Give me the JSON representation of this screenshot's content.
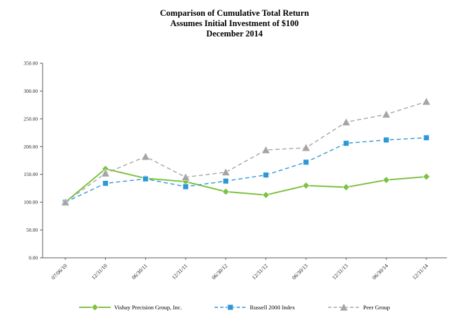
{
  "title": {
    "line1": "Comparison of Cumulative Total Return",
    "line2": "Assumes Initial Investment of $100",
    "line3": "December 2014"
  },
  "chart_data": {
    "type": "line",
    "title": "Comparison of Cumulative Total Return Assumes Initial Investment of $100 December 2014",
    "categories": [
      "07/06/10",
      "12/31/10",
      "06/30/11",
      "12/31/11",
      "06/30/12",
      "12/31/12",
      "06/30/13",
      "12/31/13",
      "06/30/14",
      "12/31/14"
    ],
    "series": [
      {
        "name": "Vishay Precision Group, Inc.",
        "values": [
          100,
          160,
          143,
          137,
          119,
          113,
          130,
          127,
          140,
          146
        ],
        "color": "#7dc242",
        "line_style": "solid",
        "marker": "diamond"
      },
      {
        "name": "Russell 2000 Index",
        "values": [
          100,
          134,
          142,
          128,
          138,
          149,
          172,
          206,
          212,
          216
        ],
        "color": "#2e97d5",
        "line_style": "dashed",
        "marker": "square"
      },
      {
        "name": "Peer Group",
        "values": [
          100,
          152,
          182,
          145,
          154,
          194,
          198,
          244,
          258,
          281
        ],
        "color": "#a5a5a5",
        "line_style": "dashed",
        "marker": "triangle"
      }
    ],
    "ylim": [
      0,
      350
    ],
    "ytick_step": 50,
    "ytick_labels": [
      "0.00",
      "50.00",
      "100.00",
      "150.00",
      "200.00",
      "250.00",
      "300.00",
      "350.00"
    ],
    "xlabel": "",
    "ylabel": "",
    "grid": false,
    "legend_position": "bottom"
  },
  "colors": {
    "axis": "#595959",
    "tick_text": "#262626"
  }
}
